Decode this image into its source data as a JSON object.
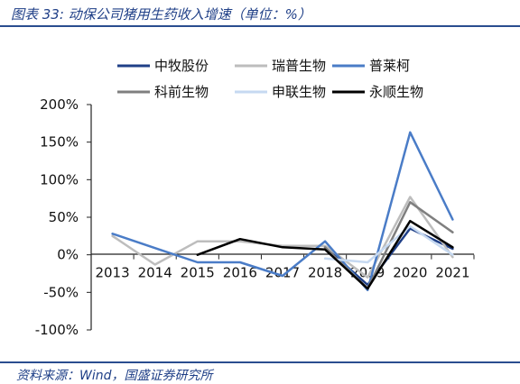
{
  "header": {
    "title": "图表 33:  动保公司猪用生药收入增速（单位：%）"
  },
  "footer": {
    "source": "资料来源：Wind，国盛证券研究所"
  },
  "chart_data": {
    "type": "line",
    "title": "动保公司猪用生药收入增速（单位：%）",
    "xlabel": "",
    "ylabel": "",
    "x": [
      "2013",
      "2014",
      "2015",
      "2016",
      "2017",
      "2018",
      "2019",
      "2020",
      "2021"
    ],
    "y_tick_labels": [
      "-100%",
      "-50%",
      "0%",
      "50%",
      "100%",
      "150%",
      "200%"
    ],
    "ylim": [
      -100,
      200
    ],
    "y_ticks": [
      -100,
      -50,
      0,
      50,
      100,
      150,
      200
    ],
    "unit": "%",
    "grid": false,
    "legend_position": "top",
    "series": [
      {
        "name": "中牧股份",
        "color": "#1f3f87",
        "width": 2.5,
        "values": [
          null,
          null,
          null,
          null,
          null,
          10,
          -40,
          35,
          8
        ]
      },
      {
        "name": "瑞普生物",
        "color": "#bdbdbd",
        "width": 2.5,
        "values": [
          25,
          -13,
          18,
          18,
          12,
          12,
          -30,
          77,
          -3
        ]
      },
      {
        "name": "普莱柯",
        "color": "#4a7cc7",
        "width": 2.5,
        "values": [
          28,
          9,
          -10,
          -10,
          -28,
          18,
          -47,
          163,
          47
        ]
      },
      {
        "name": "科前生物",
        "color": "#7f7f7f",
        "width": 2.5,
        "values": [
          null,
          null,
          null,
          null,
          null,
          10,
          -45,
          70,
          30
        ]
      },
      {
        "name": "申联生物",
        "color": "#c6d9f1",
        "width": 2.5,
        "values": [
          null,
          null,
          null,
          null,
          null,
          -5,
          -10,
          38,
          0
        ]
      },
      {
        "name": "永顺生物",
        "color": "#000000",
        "width": 2.5,
        "values": [
          null,
          null,
          0,
          21,
          10,
          7,
          -45,
          45,
          10
        ]
      }
    ]
  }
}
